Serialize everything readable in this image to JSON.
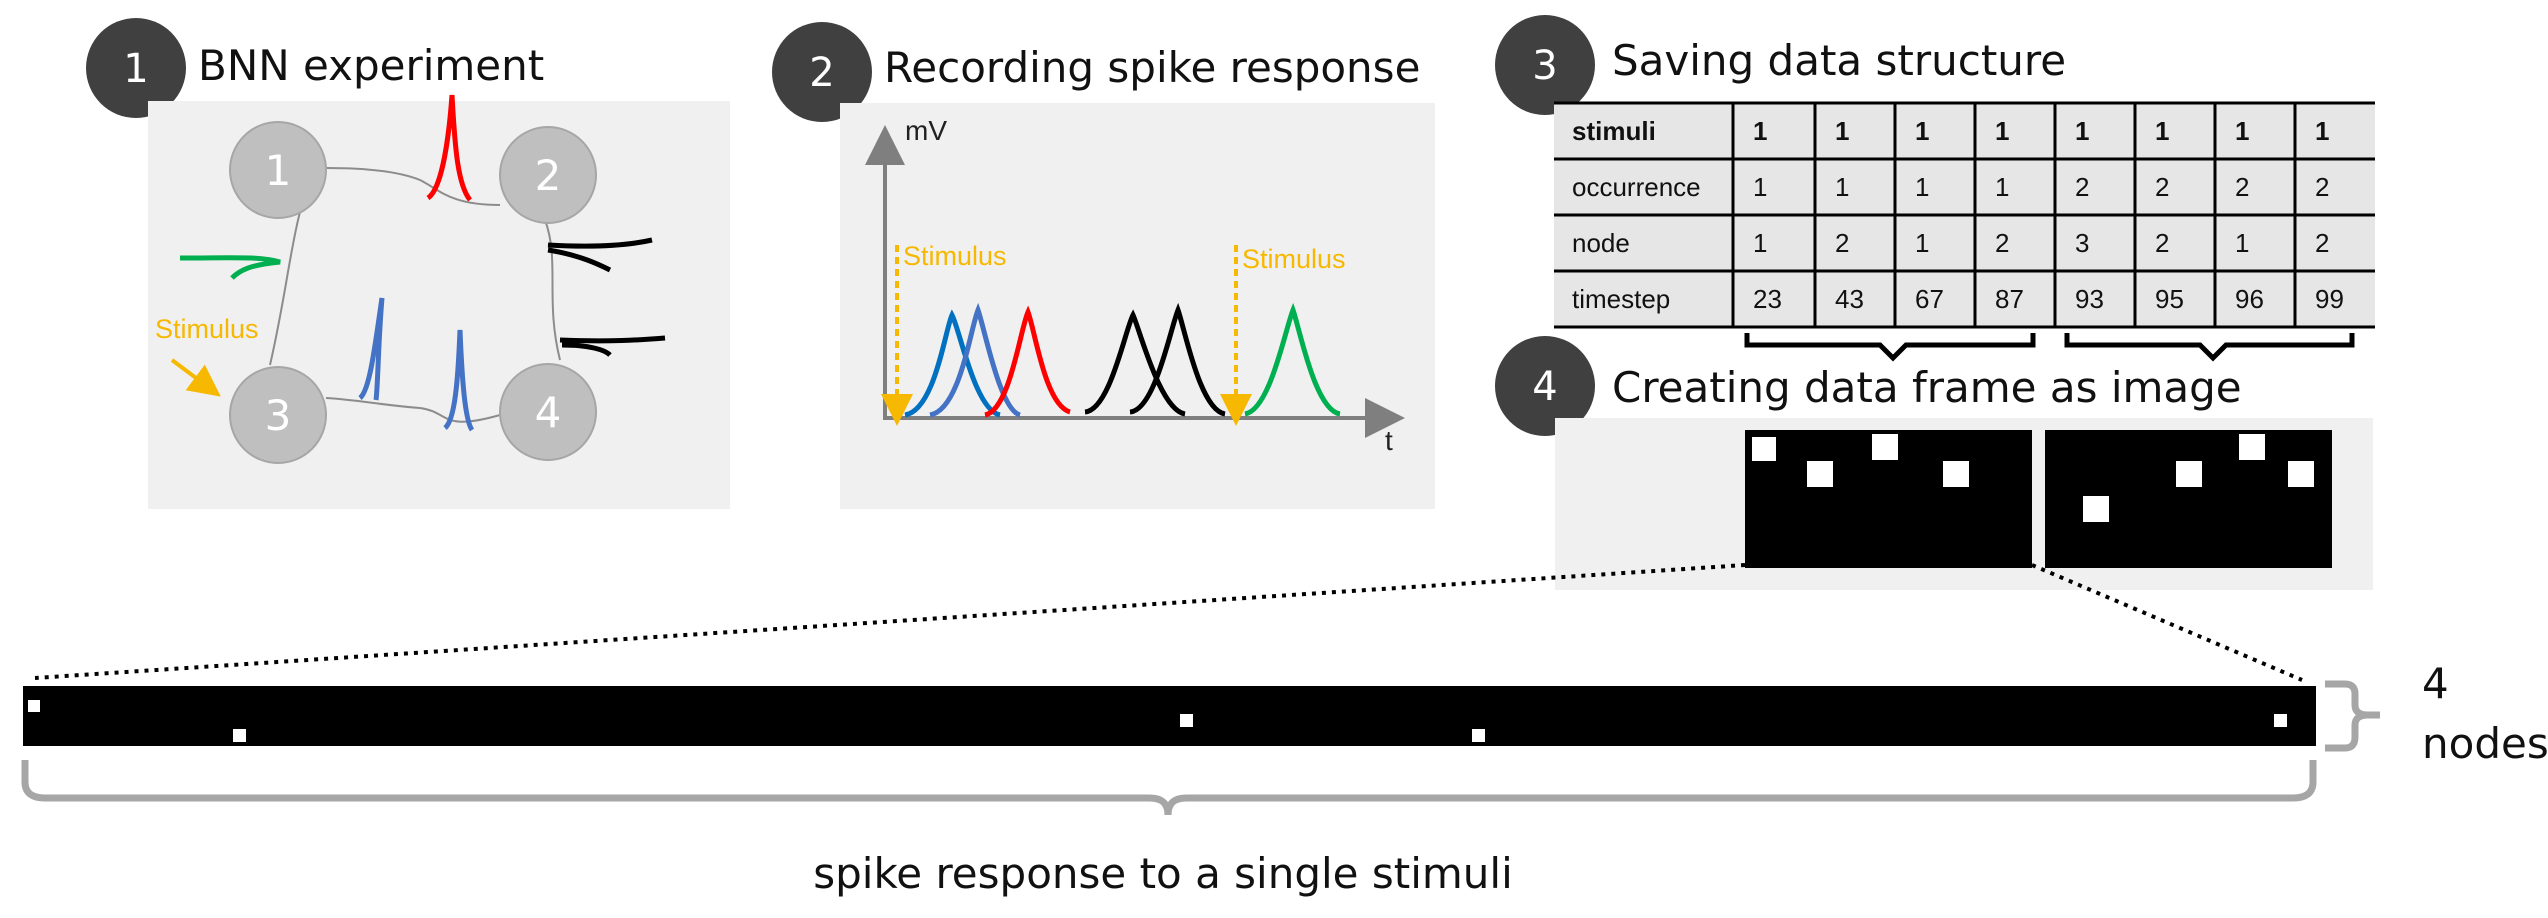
{
  "steps": [
    {
      "number": "1",
      "title": "BNN experiment"
    },
    {
      "number": "2",
      "title": "Recording spike response"
    },
    {
      "number": "3",
      "title": "Saving data structure"
    },
    {
      "number": "4",
      "title": "Creating data frame as image"
    }
  ],
  "network": {
    "nodes": [
      "1",
      "2",
      "3",
      "4"
    ],
    "stimulus_label": "Stimulus"
  },
  "recording": {
    "y_axis_label": "mV",
    "x_axis_label": "t",
    "stimulus_labels": [
      "Stimulus",
      "Stimulus"
    ]
  },
  "table": {
    "rows": [
      {
        "label": "stimuli",
        "values": [
          "1",
          "1",
          "1",
          "1",
          "1",
          "1",
          "1",
          "1"
        ]
      },
      {
        "label": "occurrence",
        "values": [
          "1",
          "1",
          "1",
          "1",
          "2",
          "2",
          "2",
          "2"
        ]
      },
      {
        "label": "node",
        "values": [
          "1",
          "2",
          "1",
          "2",
          "3",
          "2",
          "1",
          "2"
        ]
      },
      {
        "label": "timestep",
        "values": [
          "23",
          "43",
          "67",
          "87",
          "93",
          "95",
          "96",
          "99"
        ]
      }
    ]
  },
  "strip": {
    "nodes_count": "4",
    "nodes_word": "nodes",
    "caption": "spike response to a single stimuli"
  },
  "colors": {
    "panel": "#f0f0f0",
    "step_circle": "#404040",
    "node_circle": "#bfbfbf",
    "stimulus": "#f6b800",
    "red": "#ff0000",
    "green": "#00b050",
    "blue": "#4472c4",
    "dark_blue": "#0070c0",
    "bracket": "#a6a6a6"
  }
}
